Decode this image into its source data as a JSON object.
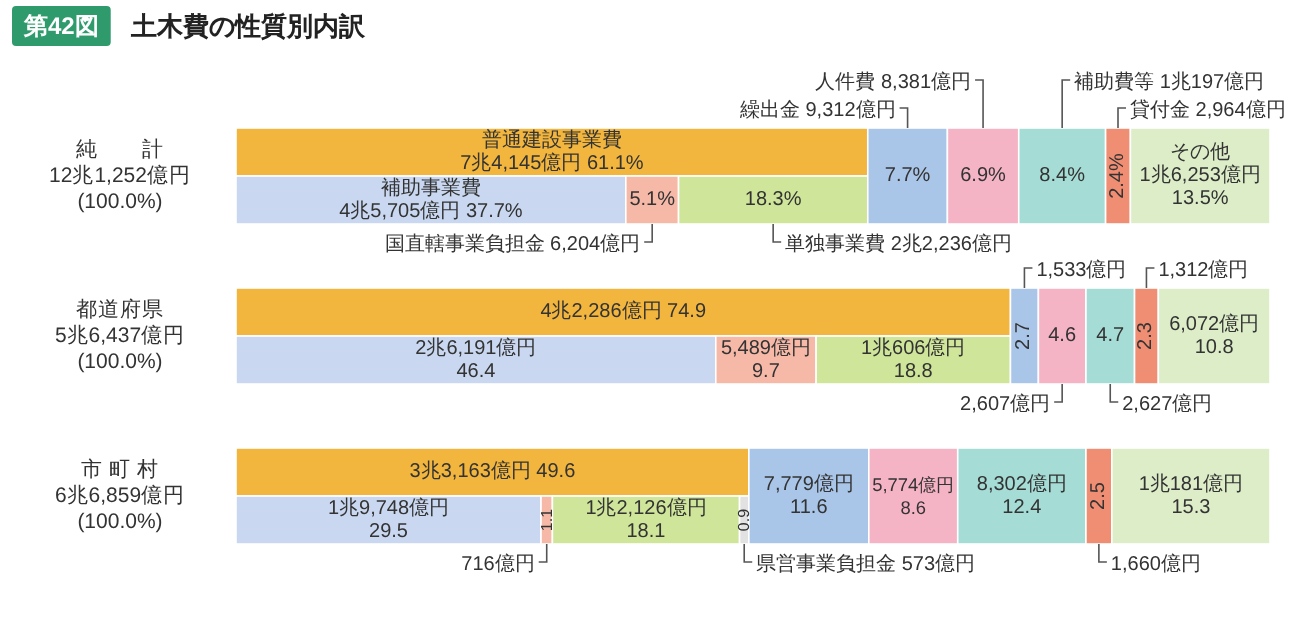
{
  "chart_data": {
    "type": "bar",
    "orientation": "horizontal",
    "stacked": true,
    "title": "土木費の性質別内訳",
    "categories": [
      "純　　計\n12兆1,252億円\n(100.0%)",
      "都道府県\n5兆6,437億円\n(100.0%)",
      "市 町 村\n6兆6,859億円\n(100.0%)"
    ],
    "xlim": [
      0,
      100
    ],
    "tick_labels": "y",
    "series": [
      {
        "axis": "y2",
        "color": "#f2b53d",
        "values": [
          61.1,
          74.9,
          49.6
        ],
        "value_labels": [
          "普通建設事業費\n7兆4,145億円 61.1%",
          "4兆2,286億円 74.9",
          "3兆3,163億円 49.6"
        ]
      },
      {
        "color": "#c9d8f0",
        "values": [
          37.7,
          46.4,
          29.5
        ],
        "value_labels": [
          "補助事業費\n4兆5,705億円 37.7%",
          "2兆6,191億円\n46.4",
          "1兆9,748億円\n29.5"
        ]
      },
      {
        "color": "#f6b9a8",
        "values": [
          5.1,
          9.7,
          1.1
        ],
        "value_labels": [
          "5.1%",
          "5,489億円\n9.7",
          "1.1"
        ]
      },
      {
        "color": "#cfe59a",
        "values": [
          18.3,
          18.8,
          18.1
        ],
        "value_labels": [
          "18.3%",
          "1兆606億円\n18.8",
          "1兆2,126億円\n18.1"
        ]
      },
      {
        "color": "#e2e2e2",
        "values": [
          null,
          null,
          0.9
        ],
        "value_labels": [
          null,
          null,
          "0.9"
        ]
      },
      {
        "color": "#a9c5e8",
        "values": [
          7.7,
          2.7,
          11.6
        ],
        "value_labels": [
          "7.7%",
          "2.7",
          "7,779億円\n11.6"
        ]
      },
      {
        "color": "#f5b3c6",
        "values": [
          6.9,
          4.6,
          8.6
        ],
        "value_labels": [
          "6.9%",
          "4.6",
          "5,774億円\n8.6"
        ]
      },
      {
        "color": "#a6dcd6",
        "values": [
          8.4,
          4.7,
          12.4
        ],
        "value_labels": [
          "8.4%",
          "4.7",
          "8,302億円\n12.4"
        ]
      },
      {
        "color": "#f08e74",
        "values": [
          2.4,
          2.3,
          2.5
        ],
        "value_labels": [
          "2.4%",
          "2.3",
          "2.5"
        ]
      },
      {
        "color": "#dcedc8",
        "values": [
          13.5,
          10.8,
          15.3
        ],
        "value_labels": [
          "その他\n1兆6,253億円\n13.5%",
          "6,072億円\n10.8",
          "1兆181億円\n15.3"
        ]
      }
    ],
    "annotations": [
      "第42図",
      "繰出金 9,312億円",
      "人件費 8,381億円",
      "補助費等 1兆197億円",
      "貸付金 2,964億円",
      "国直轄事業負担金 6,204億円",
      "単独事業費 2兆2,236億円",
      "1,533億円",
      "1,312億円",
      "2,607億円",
      "2,627億円",
      "716億円",
      "県営事業負担金 573億円",
      "1,660億円"
    ]
  }
}
